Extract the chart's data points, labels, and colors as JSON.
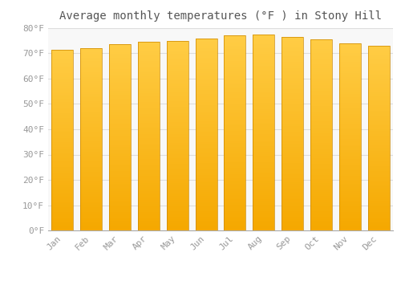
{
  "title": "Average monthly temperatures (°F ) in Stony Hill",
  "months": [
    "Jan",
    "Feb",
    "Mar",
    "Apr",
    "May",
    "Jun",
    "Jul",
    "Aug",
    "Sep",
    "Oct",
    "Nov",
    "Dec"
  ],
  "values": [
    71.5,
    72.0,
    73.5,
    74.5,
    75.0,
    76.0,
    77.0,
    77.5,
    76.5,
    75.5,
    74.0,
    73.0
  ],
  "bar_color_top": "#FFCC44",
  "bar_color_bottom": "#F5A800",
  "bar_edge_color": "#CC8800",
  "background_color": "#FFFFFF",
  "plot_bg_color": "#F8F8F8",
  "grid_color": "#DDDDDD",
  "title_color": "#555555",
  "label_color": "#999999",
  "ylim": [
    0,
    80
  ],
  "ytick_step": 10,
  "title_fontsize": 10,
  "tick_fontsize": 8
}
